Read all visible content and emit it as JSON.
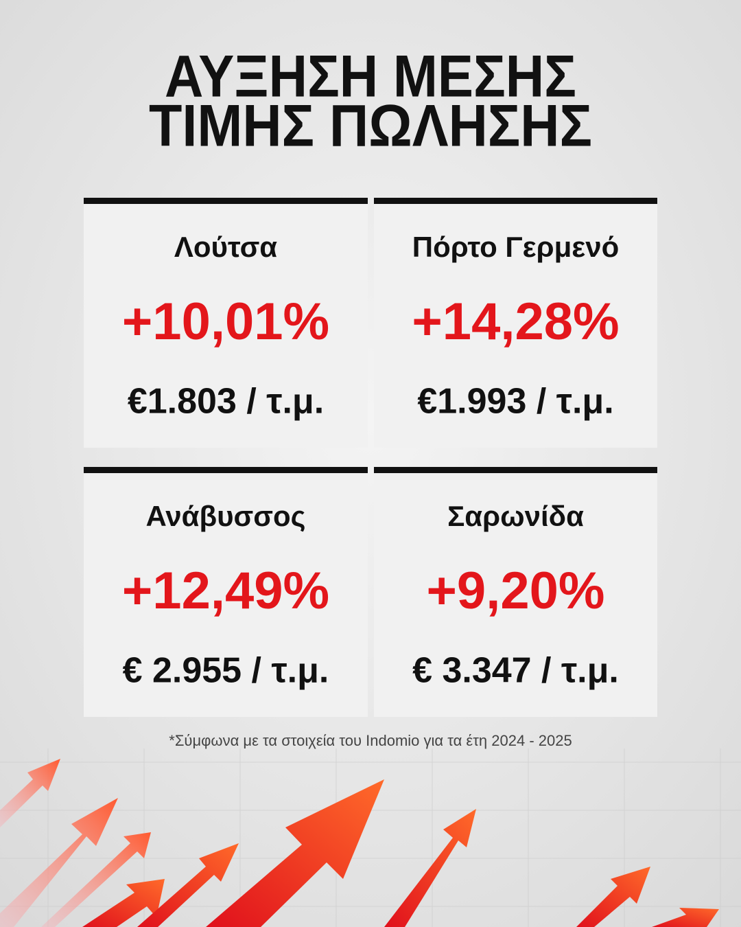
{
  "title_lines": [
    "ΑΥΞΗΣΗ ΜΕΣΗΣ",
    "ΤΙΜΗΣ ΠΩΛΗΣΗΣ"
  ],
  "cards": [
    {
      "name": "Λούτσα",
      "change": "+10,01%",
      "price": "€1.803 / τ.μ."
    },
    {
      "name": "Πόρτο Γερμενό",
      "change": "+14,28%",
      "price": "€1.993 / τ.μ."
    },
    {
      "name": "Ανάβυσσος",
      "change": "+12,49%",
      "price": "€ 2.955 / τ.μ."
    },
    {
      "name": "Σαρωνίδα",
      "change": "+9,20%",
      "price": "€ 3.347 / τ.μ."
    }
  ],
  "footnote": "*Σύμφωνα με τα στοιχεία του Indomio για τα έτη 2024 - 2025"
}
